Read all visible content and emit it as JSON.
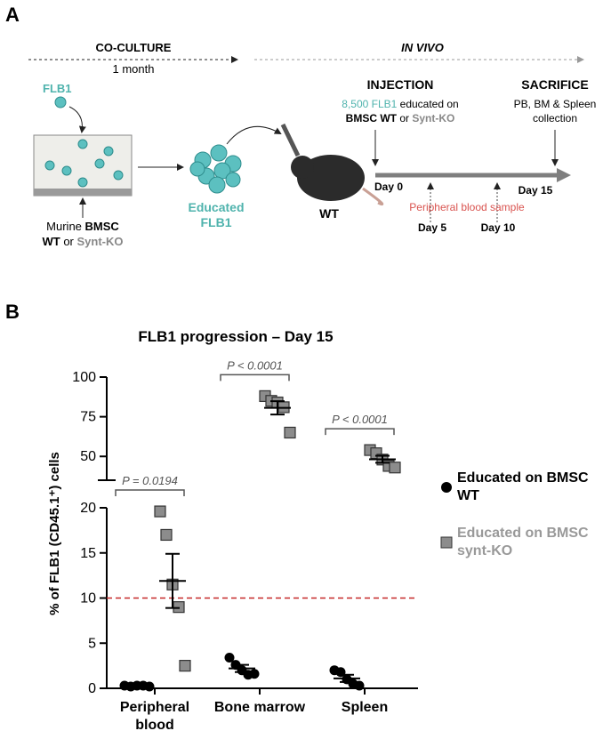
{
  "panel_a": {
    "label": "A",
    "coculture": "CO-CULTURE",
    "duration": "1 month",
    "in_vivo": "IN VIVO",
    "flb1": "FLB1",
    "bmsc_label": [
      "Murine",
      "BMSC",
      "WT",
      "or",
      "Synt-KO"
    ],
    "educated": [
      "Educated",
      "FLB1"
    ],
    "mouse": "WT",
    "injection": "INJECTION",
    "injection_detail": [
      "8,500 FLB1",
      "educated on",
      "BMSC WT",
      "or",
      "Synt-KO"
    ],
    "sacrifice": "SACRIFICE",
    "sacrifice_detail": [
      "PB, BM & Spleen",
      "collection"
    ],
    "day0": "Day 0",
    "day15": "Day 15",
    "day5": "Day 5",
    "day10": "Day 10",
    "sample": "Peripheral blood sample"
  },
  "panel_b_label": "B",
  "chart_data": {
    "type": "scatter",
    "title": "FLB1 progression – Day 15",
    "ylabel": "% of FLB1 (CD45.1⁺) cells",
    "categories": [
      "Peripheral blood",
      "Bone marrow",
      "Spleen"
    ],
    "series": [
      {
        "name": "Educated on BMSC WT",
        "color": "#000000",
        "marker": "circle",
        "values": [
          [
            0.3,
            0.2,
            0.3,
            0.3,
            0.2
          ],
          [
            3.4,
            2.6,
            2.0,
            1.5,
            1.6
          ],
          [
            2.0,
            1.8,
            1.0,
            0.5,
            0.3
          ]
        ],
        "means": [
          0.3,
          2.2,
          1.1
        ],
        "sems": [
          0.1,
          0.4,
          0.4
        ]
      },
      {
        "name": "Educated on BMSC synt-KO",
        "color": "#8c8c8c",
        "marker": "square",
        "values": [
          [
            19.6,
            17.0,
            11.5,
            9.0,
            2.5
          ],
          [
            88,
            85,
            84,
            81,
            65
          ],
          [
            54,
            52,
            48,
            44,
            43
          ]
        ],
        "means": [
          11.9,
          80.6,
          48.2
        ],
        "sems": [
          3.0,
          4.2,
          2.2
        ]
      }
    ],
    "annotations": [
      "P = 0.0194",
      "P < 0.0001",
      "P < 0.0001"
    ],
    "reference_line": {
      "value": 10,
      "color": "#c62828"
    },
    "ylim": [
      0,
      20
    ],
    "yticks": [
      0,
      5,
      10,
      15,
      20
    ],
    "ylim_upper": [
      35,
      100
    ],
    "yticks_upper": [
      50,
      75,
      100
    ],
    "legend": "right"
  }
}
